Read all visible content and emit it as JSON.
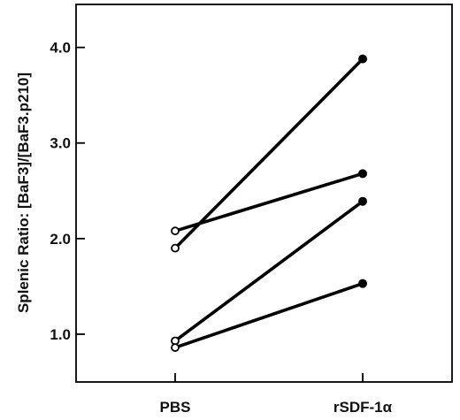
{
  "chart_data": {
    "type": "line",
    "title": "",
    "xlabel": "",
    "ylabel": "Splenic Ratio:  [BaF3]/[BaF3.p210]",
    "categories": [
      "PBS",
      "rSDF-1α"
    ],
    "ylim": [
      0.5,
      4.45
    ],
    "yticks": [
      "1.0",
      "2.0",
      "3.0",
      "4.0"
    ],
    "ytick_values": [
      1.0,
      2.0,
      3.0,
      4.0
    ],
    "grid": false,
    "legend": "none",
    "markers": {
      "PBS": "open-circle",
      "rSDF-1α": "filled-circle"
    },
    "series": [
      {
        "values": [
          1.9,
          3.88
        ]
      },
      {
        "values": [
          2.08,
          2.68
        ]
      },
      {
        "values": [
          0.93,
          2.39
        ]
      },
      {
        "values": [
          0.86,
          1.53
        ]
      }
    ]
  },
  "colors": {
    "line": "#000000",
    "axis": "#000000",
    "marker_open_fill": "#ffffff"
  }
}
